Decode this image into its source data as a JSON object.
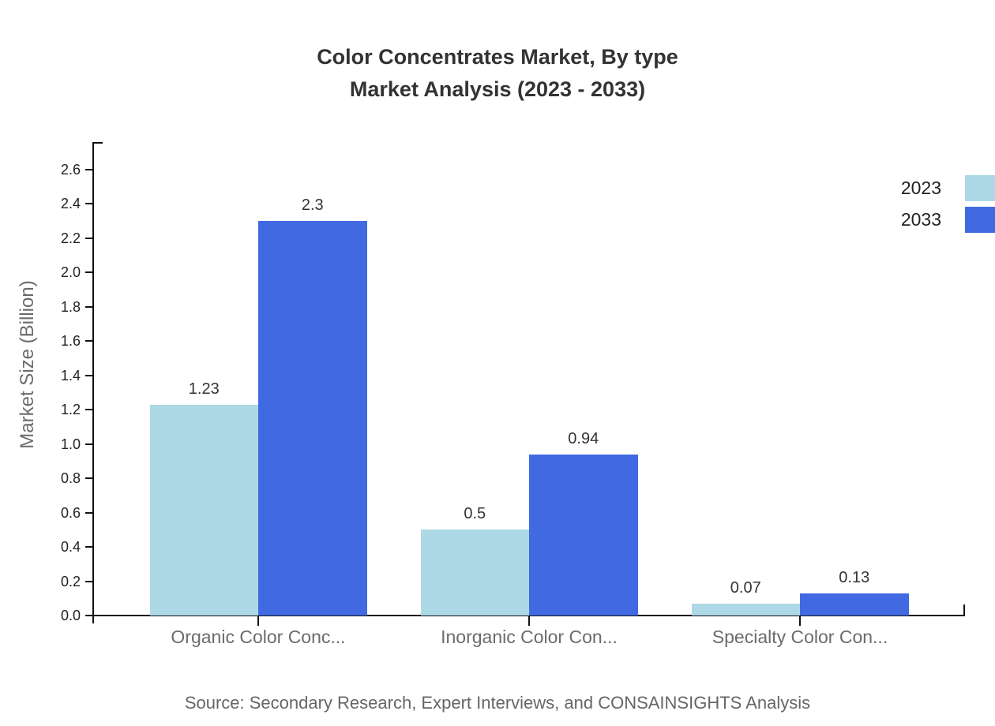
{
  "chart_data": {
    "type": "bar",
    "title": "Color Concentrates Market, By type",
    "subtitle": "Market Analysis (2023 - 2033)",
    "categories": [
      "Organic Color Conc...",
      "Inorganic Color Con...",
      "Specialty Color Con..."
    ],
    "series": [
      {
        "name": "2023",
        "color": "#ADD8E6",
        "values": [
          1.23,
          0.5,
          0.07
        ]
      },
      {
        "name": "2033",
        "color": "#4169E1",
        "values": [
          2.3,
          0.94,
          0.13
        ]
      }
    ],
    "value_labels": [
      "1.23",
      "2.3",
      "0.5",
      "0.94",
      "0.07",
      "0.13"
    ],
    "xlabel": "",
    "ylabel": "Market Size (Billion)",
    "ylim": [
      0,
      2.6
    ],
    "yticks": [
      0,
      0.2,
      0.4,
      0.6,
      0.8,
      1.0,
      1.2,
      1.4,
      1.6,
      1.8,
      2.0,
      2.2,
      2.4,
      2.6
    ],
    "grid": false,
    "legend_position": "top-right",
    "source": "Source: Secondary Research, Expert Interviews, and CONSAINSIGHTS Analysis"
  }
}
